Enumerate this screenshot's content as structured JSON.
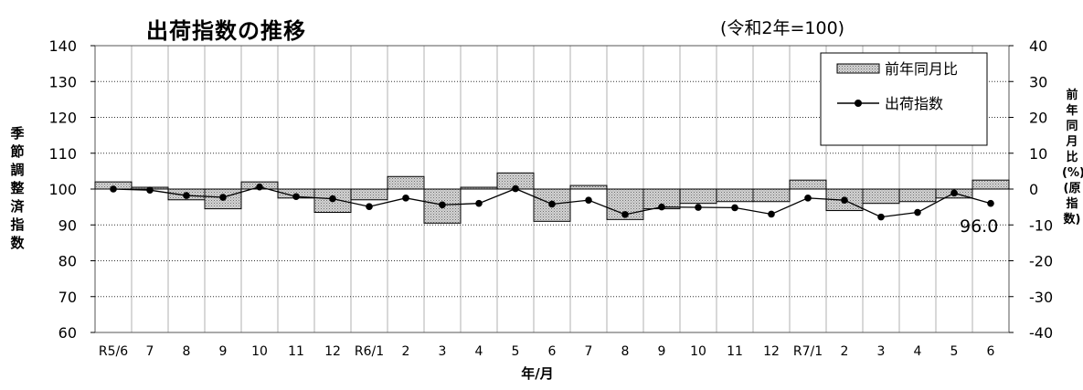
{
  "chart_data": {
    "type": "bar+line",
    "title": "出荷指数の推移",
    "subtitle": "(令和2年=100)",
    "xlabel": "年/月",
    "ylabel_left": "季節調整済指数",
    "ylabel_right": "前年同月比(%)(原指数)",
    "categories": [
      "R5/6",
      "7",
      "8",
      "9",
      "10",
      "11",
      "12",
      "R6/1",
      "2",
      "3",
      "4",
      "5",
      "6",
      "7",
      "8",
      "9",
      "10",
      "11",
      "12",
      "R7/1",
      "2",
      "3",
      "4",
      "5",
      "6"
    ],
    "ylim_left": [
      60,
      140
    ],
    "yticks_left": [
      60,
      70,
      80,
      90,
      100,
      110,
      120,
      130,
      140
    ],
    "ylim_right": [
      -40,
      40
    ],
    "yticks_right": [
      -40,
      -30,
      -20,
      -10,
      0,
      10,
      20,
      30,
      40
    ],
    "grid": true,
    "legend_position": "top-right",
    "series": [
      {
        "name": "前年同月比",
        "kind": "bar",
        "axis": "right",
        "color": "#b8b8b8",
        "values": [
          2.0,
          0.5,
          -3.0,
          -5.5,
          2.0,
          -2.5,
          -6.5,
          -3.0,
          3.5,
          -9.5,
          0.5,
          4.5,
          -9.0,
          1.0,
          -8.5,
          -5.5,
          -4.0,
          -3.5,
          -3.5,
          2.5,
          -6.0,
          -4.0,
          -3.5,
          -2.5,
          2.5
        ]
      },
      {
        "name": "出荷指数",
        "kind": "line",
        "axis": "left",
        "color": "#000000",
        "values": [
          100.0,
          99.7,
          98.2,
          97.7,
          100.6,
          97.9,
          97.3,
          95.1,
          97.5,
          95.6,
          96.0,
          100.1,
          95.8,
          96.9,
          92.9,
          95.0,
          94.9,
          94.8,
          93.0,
          97.5,
          96.9,
          92.2,
          93.5,
          98.9,
          96.0
        ]
      }
    ],
    "annotations": [
      {
        "text": "96.0",
        "target": "出荷指数 at 6"
      }
    ]
  }
}
